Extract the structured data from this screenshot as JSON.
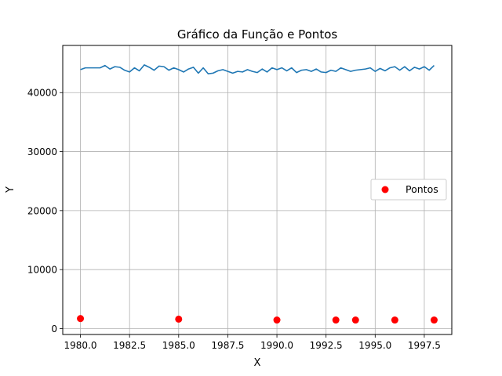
{
  "chart_data": {
    "type": "line+scatter",
    "title": "Gráfico da Função e Pontos",
    "xlabel": "X",
    "ylabel": "Y",
    "xlim": [
      1979.1,
      1998.9
    ],
    "ylim": [
      -1000,
      48000
    ],
    "grid": true,
    "legend_position": "center-right",
    "x_ticks": [
      1980,
      1982.5,
      1985,
      1987.5,
      1990,
      1992.5,
      1995,
      1997.5
    ],
    "x_tick_labels": [
      "1980.0",
      "1982.5",
      "1985.0",
      "1987.5",
      "1990.0",
      "1992.5",
      "1995.0",
      "1997.5"
    ],
    "y_ticks": [
      0,
      10000,
      20000,
      30000,
      40000
    ],
    "y_tick_labels": [
      "0",
      "10000",
      "20000",
      "30000",
      "40000"
    ],
    "line_series": {
      "color": "#1f77b4",
      "x": [
        1980.0,
        1980.25,
        1980.5,
        1980.75,
        1981.0,
        1981.25,
        1981.5,
        1981.75,
        1982.0,
        1982.25,
        1982.5,
        1982.75,
        1983.0,
        1983.25,
        1983.5,
        1983.75,
        1984.0,
        1984.25,
        1984.5,
        1984.75,
        1985.0,
        1985.25,
        1985.5,
        1985.75,
        1986.0,
        1986.25,
        1986.5,
        1986.75,
        1987.0,
        1987.25,
        1987.5,
        1987.75,
        1988.0,
        1988.25,
        1988.5,
        1988.75,
        1989.0,
        1989.25,
        1989.5,
        1989.75,
        1990.0,
        1990.25,
        1990.5,
        1990.75,
        1991.0,
        1991.25,
        1991.5,
        1991.75,
        1992.0,
        1992.25,
        1992.5,
        1992.75,
        1993.0,
        1993.25,
        1993.5,
        1993.75,
        1994.0,
        1994.25,
        1994.5,
        1994.75,
        1995.0,
        1995.25,
        1995.5,
        1995.75,
        1996.0,
        1996.25,
        1996.5,
        1996.75,
        1997.0,
        1997.25,
        1997.5,
        1997.75,
        1998.0
      ],
      "y": [
        43900,
        44200,
        44200,
        44200,
        44200,
        44600,
        44000,
        44400,
        44300,
        43800,
        43500,
        44200,
        43700,
        44700,
        44300,
        43800,
        44500,
        44400,
        43800,
        44200,
        43900,
        43500,
        44000,
        44300,
        43300,
        44200,
        43200,
        43300,
        43700,
        43900,
        43600,
        43300,
        43600,
        43500,
        43900,
        43600,
        43400,
        44000,
        43500,
        44200,
        43900,
        44200,
        43700,
        44200,
        43400,
        43800,
        43900,
        43600,
        44000,
        43500,
        43400,
        43800,
        43600,
        44200,
        43900,
        43600,
        43800,
        43900,
        44000,
        44200,
        43600,
        44100,
        43700,
        44200,
        44400,
        43800,
        44400,
        43700,
        44300,
        44000,
        44400,
        43800,
        44600
      ]
    },
    "scatter_series": {
      "name": "Pontos",
      "color": "#ff0000",
      "x": [
        1980,
        1985,
        1990,
        1993,
        1994,
        1996,
        1998
      ],
      "y": [
        1700,
        1600,
        1450,
        1450,
        1450,
        1450,
        1450
      ]
    }
  }
}
